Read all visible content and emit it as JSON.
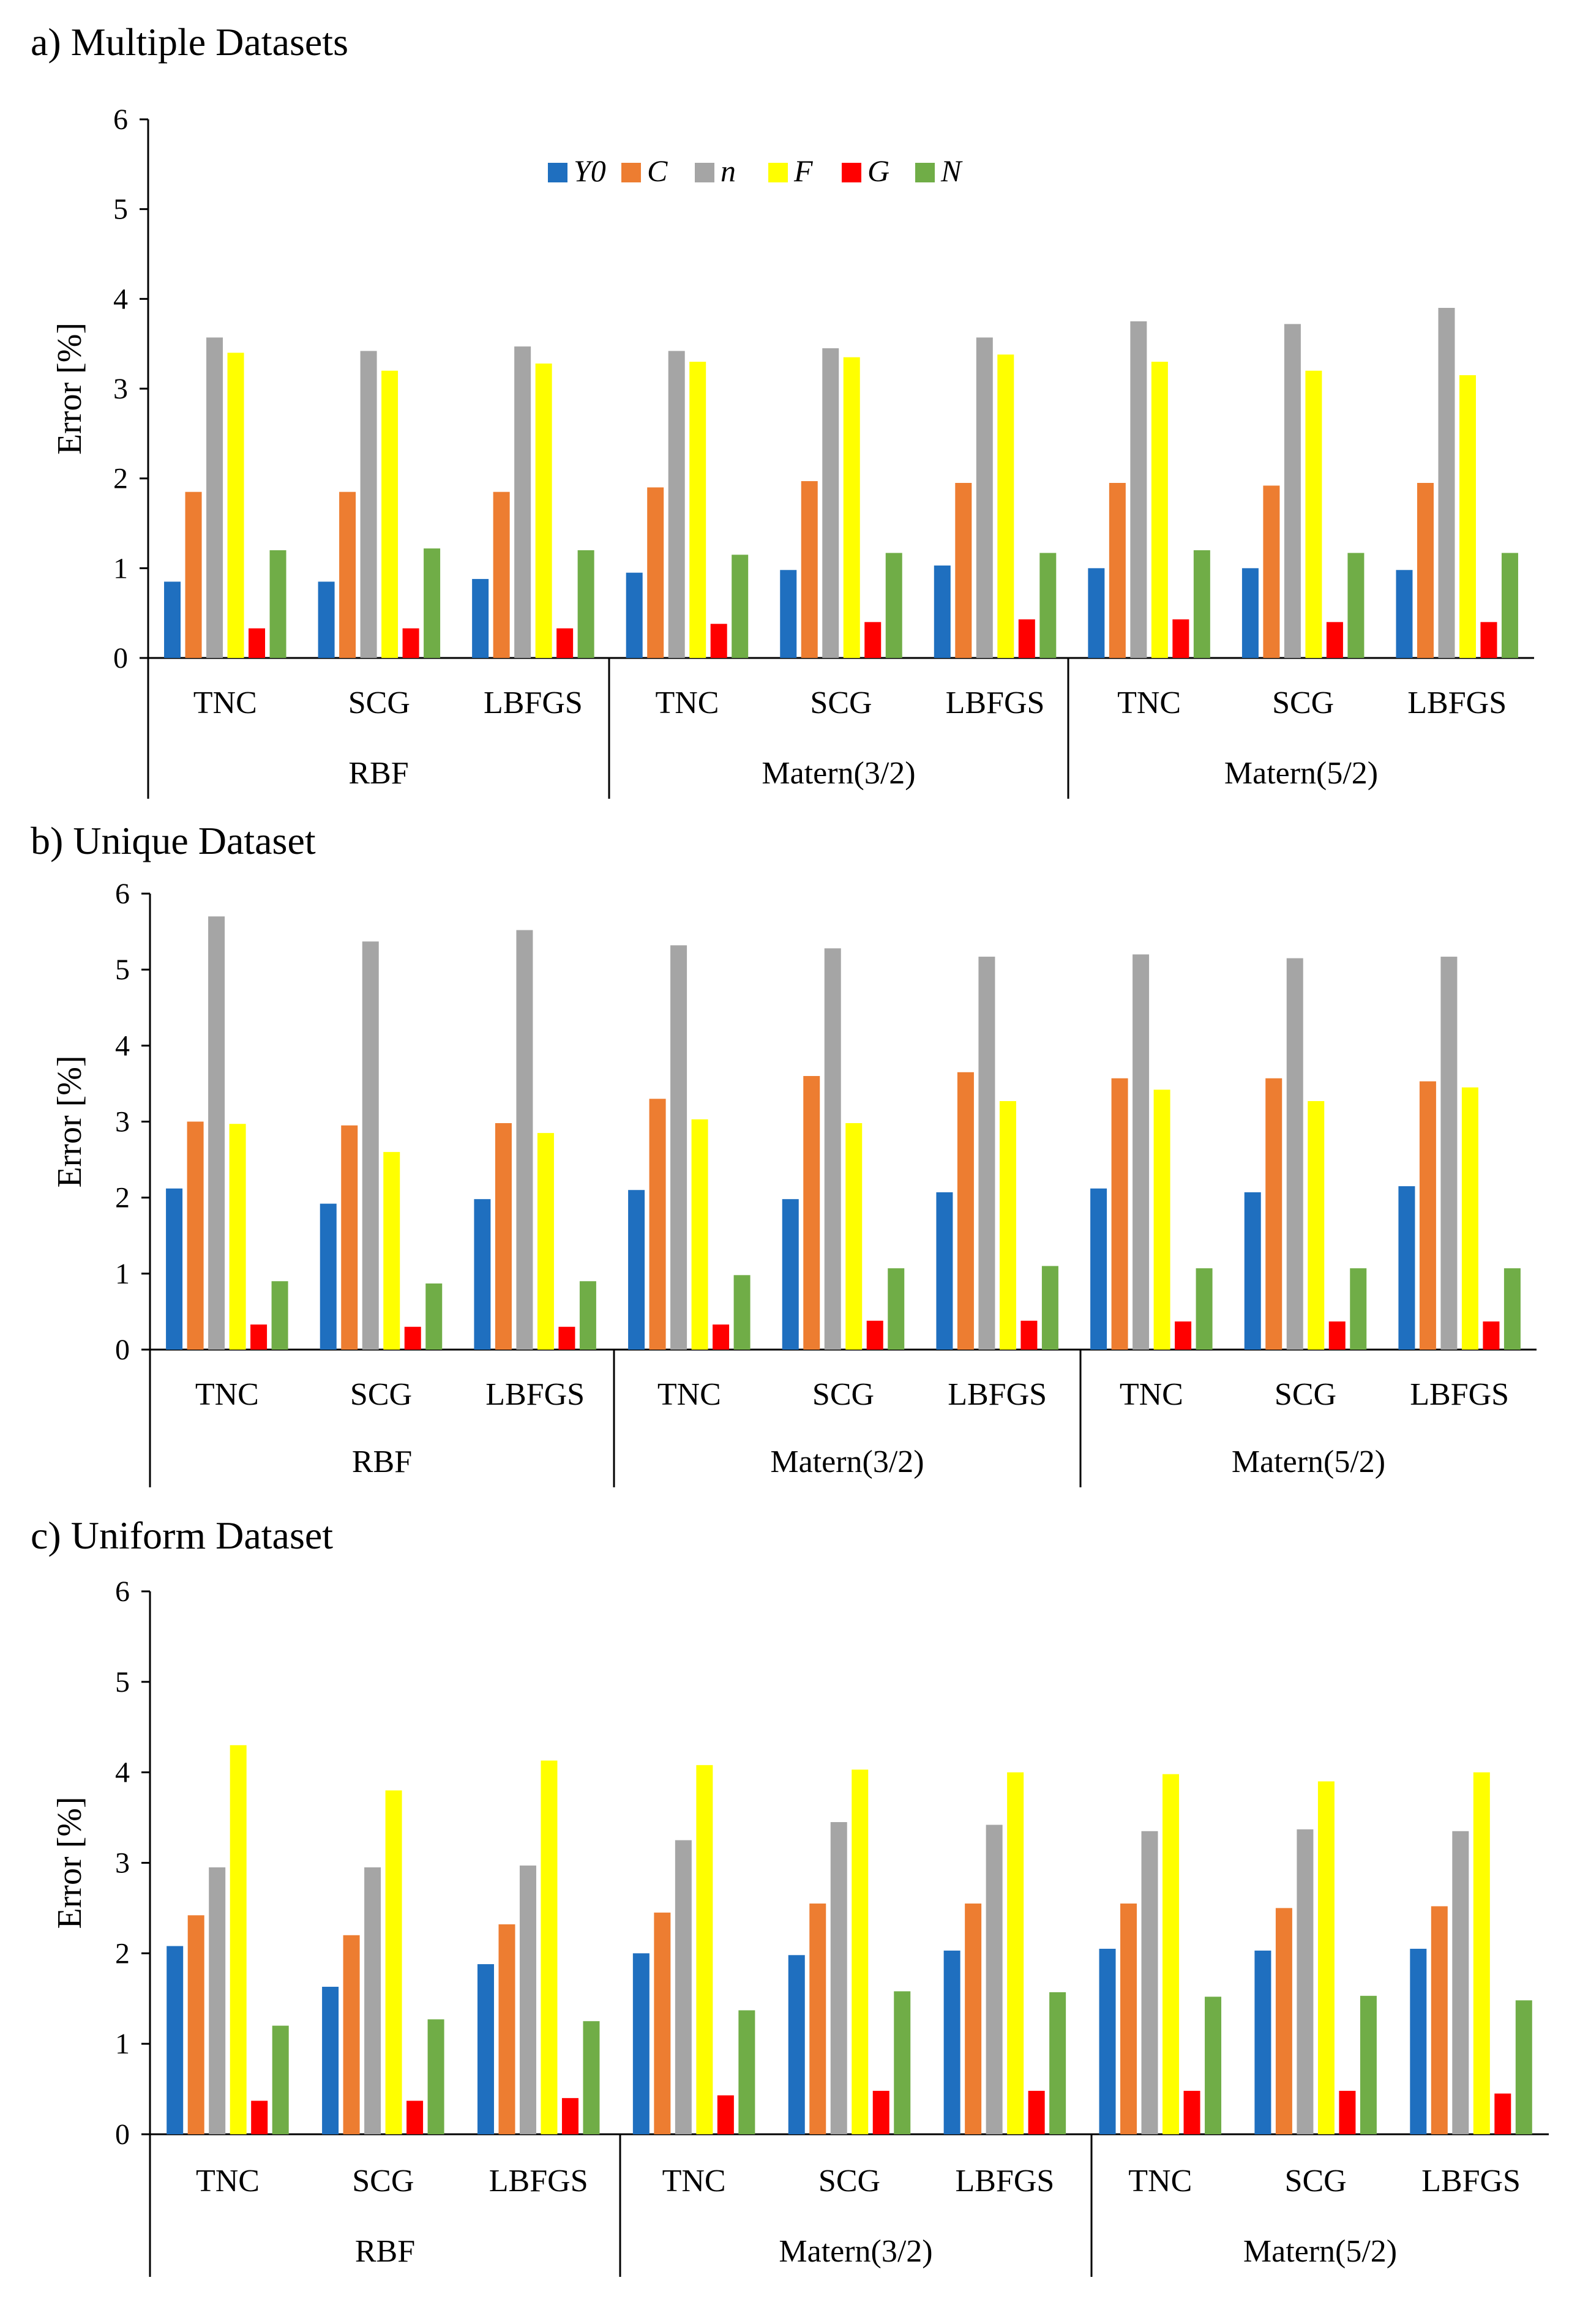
{
  "series_colors": {
    "Y0": "#1F6FBF",
    "C": "#ED7D31",
    "n": "#A5A5A5",
    "F": "#FFFF00",
    "G": "#FF0000",
    "N": "#70AD47"
  },
  "legend": [
    "Y0",
    "C",
    "n",
    "F",
    "G",
    "N"
  ],
  "chart_data": [
    {
      "type": "bar",
      "title": "a) Multiple Datasets",
      "ylabel": "Error [%]",
      "ylim": [
        0,
        6
      ],
      "yticks": [
        "0",
        "1",
        "2",
        "3",
        "4",
        "5",
        "6"
      ],
      "categories": [
        "TNC",
        "SCG",
        "LBFGS",
        "TNC",
        "SCG",
        "LBFGS",
        "TNC",
        "SCG",
        "LBFGS"
      ],
      "groups": [
        "RBF",
        "Matern(3/2)",
        "Matern(5/2)"
      ],
      "legend_location": "top-center",
      "series": [
        {
          "name": "Y0",
          "values": [
            0.85,
            0.85,
            0.88,
            0.95,
            0.98,
            1.03,
            1.0,
            1.0,
            0.98
          ]
        },
        {
          "name": "C",
          "values": [
            1.85,
            1.85,
            1.85,
            1.9,
            1.97,
            1.95,
            1.95,
            1.92,
            1.95
          ]
        },
        {
          "name": "n",
          "values": [
            3.57,
            3.42,
            3.47,
            3.42,
            3.45,
            3.57,
            3.75,
            3.72,
            3.9
          ]
        },
        {
          "name": "F",
          "values": [
            3.4,
            3.2,
            3.28,
            3.3,
            3.35,
            3.38,
            3.3,
            3.2,
            3.15
          ]
        },
        {
          "name": "G",
          "values": [
            0.33,
            0.33,
            0.33,
            0.38,
            0.4,
            0.43,
            0.43,
            0.4,
            0.4
          ]
        },
        {
          "name": "N",
          "values": [
            1.2,
            1.22,
            1.2,
            1.15,
            1.17,
            1.17,
            1.2,
            1.17,
            1.17
          ]
        }
      ]
    },
    {
      "type": "bar",
      "title": "b) Unique Dataset",
      "ylabel": "Error [%]",
      "ylim": [
        0,
        6
      ],
      "yticks": [
        "0",
        "1",
        "2",
        "3",
        "4",
        "5",
        "6"
      ],
      "categories": [
        "TNC",
        "SCG",
        "LBFGS",
        "TNC",
        "SCG",
        "LBFGS",
        "TNC",
        "SCG",
        "LBFGS"
      ],
      "groups": [
        "RBF",
        "Matern(3/2)",
        "Matern(5/2)"
      ],
      "series": [
        {
          "name": "Y0",
          "values": [
            2.12,
            1.92,
            1.98,
            2.1,
            1.98,
            2.07,
            2.12,
            2.07,
            2.15
          ]
        },
        {
          "name": "C",
          "values": [
            3.0,
            2.95,
            2.98,
            3.3,
            3.6,
            3.65,
            3.57,
            3.57,
            3.53
          ]
        },
        {
          "name": "n",
          "values": [
            5.7,
            5.37,
            5.52,
            5.32,
            5.28,
            5.17,
            5.2,
            5.15,
            5.17
          ]
        },
        {
          "name": "F",
          "values": [
            2.97,
            2.6,
            2.85,
            3.03,
            2.98,
            3.27,
            3.42,
            3.27,
            3.45
          ]
        },
        {
          "name": "G",
          "values": [
            0.33,
            0.3,
            0.3,
            0.33,
            0.38,
            0.38,
            0.37,
            0.37,
            0.37
          ]
        },
        {
          "name": "N",
          "values": [
            0.9,
            0.87,
            0.9,
            0.98,
            1.07,
            1.1,
            1.07,
            1.07,
            1.07
          ]
        }
      ]
    },
    {
      "type": "bar",
      "title": "c) Uniform Dataset",
      "ylabel": "Error [%]",
      "ylim": [
        0,
        6
      ],
      "yticks": [
        "0",
        "1",
        "2",
        "3",
        "4",
        "5",
        "6"
      ],
      "categories": [
        "TNC",
        "SCG",
        "LBFGS",
        "TNC",
        "SCG",
        "LBFGS",
        "TNC",
        "SCG",
        "LBFGS"
      ],
      "groups": [
        "RBF",
        "Matern(3/2)",
        "Matern(5/2)"
      ],
      "series": [
        {
          "name": "Y0",
          "values": [
            2.08,
            1.63,
            1.88,
            2.0,
            1.98,
            2.03,
            2.05,
            2.03,
            2.05
          ]
        },
        {
          "name": "C",
          "values": [
            2.42,
            2.2,
            2.32,
            2.45,
            2.55,
            2.55,
            2.55,
            2.5,
            2.52
          ]
        },
        {
          "name": "n",
          "values": [
            2.95,
            2.95,
            2.97,
            3.25,
            3.45,
            3.42,
            3.35,
            3.37,
            3.35
          ]
        },
        {
          "name": "F",
          "values": [
            4.3,
            3.8,
            4.13,
            4.08,
            4.03,
            4.0,
            3.98,
            3.9,
            4.0
          ]
        },
        {
          "name": "G",
          "values": [
            0.37,
            0.37,
            0.4,
            0.43,
            0.48,
            0.48,
            0.48,
            0.48,
            0.45
          ]
        },
        {
          "name": "N",
          "values": [
            1.2,
            1.27,
            1.25,
            1.37,
            1.58,
            1.57,
            1.52,
            1.53,
            1.48
          ]
        }
      ]
    }
  ]
}
